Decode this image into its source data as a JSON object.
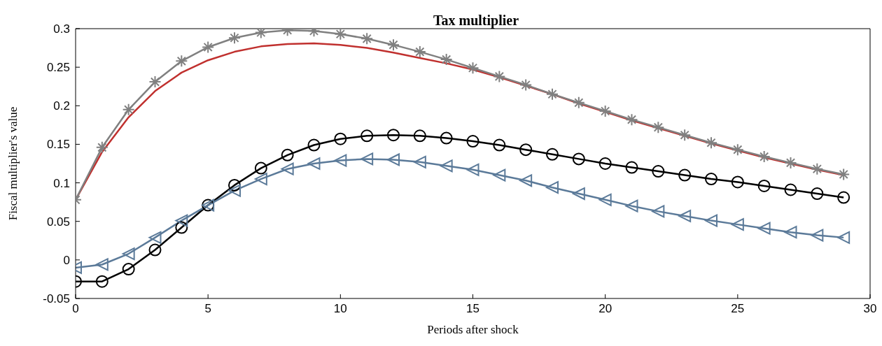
{
  "chart_data": {
    "type": "line",
    "title": "Tax multiplier",
    "xlabel": "Periods after shock",
    "ylabel": "Fiscal multiplier's value",
    "x": [
      0,
      1,
      2,
      3,
      4,
      5,
      6,
      7,
      8,
      9,
      10,
      11,
      12,
      13,
      14,
      15,
      16,
      17,
      18,
      19,
      20,
      21,
      22,
      23,
      24,
      25,
      26,
      27,
      28,
      29
    ],
    "xlim": [
      0,
      30
    ],
    "xticks": [
      0,
      5,
      10,
      15,
      20,
      25,
      30
    ],
    "ylim": [
      -0.05,
      0.3
    ],
    "yticks": [
      -0.05,
      0,
      0.05,
      0.1,
      0.15,
      0.2,
      0.25,
      0.3
    ],
    "grid": false,
    "series": [
      {
        "color": "#c0302e",
        "marker": "none",
        "values": [
          0.078,
          0.14,
          0.185,
          0.219,
          0.243,
          0.259,
          0.27,
          0.277,
          0.28,
          0.281,
          0.279,
          0.275,
          0.269,
          0.262,
          0.255,
          0.247,
          0.237,
          0.226,
          0.215,
          0.203,
          0.192,
          0.181,
          0.171,
          0.161,
          0.151,
          0.142,
          0.133,
          0.125,
          0.117,
          0.11
        ]
      },
      {
        "color": "#808080",
        "marker": "cross",
        "values": [
          0.078,
          0.146,
          0.195,
          0.231,
          0.258,
          0.276,
          0.288,
          0.295,
          0.298,
          0.297,
          0.293,
          0.287,
          0.279,
          0.27,
          0.26,
          0.249,
          0.238,
          0.227,
          0.215,
          0.204,
          0.193,
          0.182,
          0.172,
          0.162,
          0.152,
          0.143,
          0.134,
          0.126,
          0.118,
          0.111
        ]
      },
      {
        "color": "#000000",
        "marker": "circle",
        "values": [
          -0.028,
          -0.028,
          -0.012,
          0.013,
          0.042,
          0.071,
          0.097,
          0.119,
          0.136,
          0.149,
          0.157,
          0.161,
          0.162,
          0.161,
          0.158,
          0.154,
          0.149,
          0.143,
          0.137,
          0.131,
          0.125,
          0.12,
          0.115,
          0.11,
          0.105,
          0.101,
          0.096,
          0.091,
          0.086,
          0.081
        ]
      },
      {
        "color": "#5b7a99",
        "marker": "triangle",
        "values": [
          -0.01,
          -0.006,
          0.008,
          0.029,
          0.051,
          0.071,
          0.09,
          0.105,
          0.118,
          0.125,
          0.129,
          0.131,
          0.13,
          0.127,
          0.122,
          0.117,
          0.11,
          0.103,
          0.094,
          0.086,
          0.078,
          0.07,
          0.063,
          0.057,
          0.051,
          0.046,
          0.041,
          0.036,
          0.032,
          0.029
        ]
      }
    ]
  }
}
